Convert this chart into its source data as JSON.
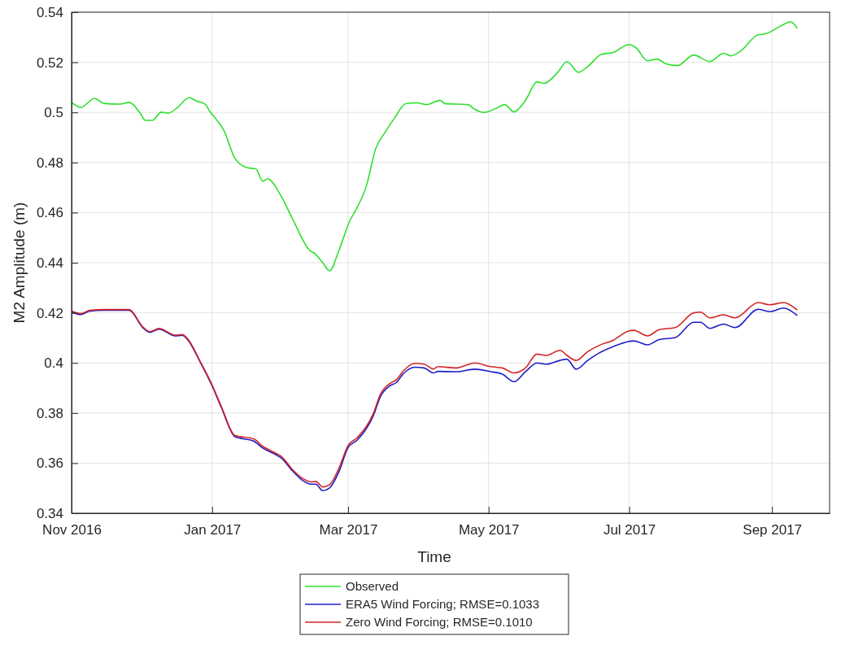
{
  "chart_data": {
    "type": "line",
    "xlabel": "Time",
    "ylabel": "M2 Amplitude (m)",
    "xlim": [
      "2016-11-01",
      "2017-09-26"
    ],
    "xticks": [
      {
        "value": "2016-11-01",
        "label": "Nov 2016"
      },
      {
        "value": "2017-01-01",
        "label": "Jan 2017"
      },
      {
        "value": "2017-03-01",
        "label": "Mar 2017"
      },
      {
        "value": "2017-05-01",
        "label": "May 2017"
      },
      {
        "value": "2017-07-01",
        "label": "Jul 2017"
      },
      {
        "value": "2017-09-01",
        "label": "Sep 2017"
      }
    ],
    "ylim": [
      0.34,
      0.54
    ],
    "yticks": [
      0.34,
      0.36,
      0.38,
      0.4,
      0.42,
      0.44,
      0.46,
      0.48,
      0.5,
      0.52,
      0.54
    ],
    "grid": true,
    "legend": "bottom",
    "line_style": "solid",
    "marker": "none",
    "series": [
      {
        "name": "Observed",
        "color": "#2ee02e",
        "x": [
          "2016-11-01",
          "2016-11-05",
          "2016-11-11",
          "2016-11-15",
          "2016-11-22",
          "2016-11-26",
          "2016-12-01",
          "2016-12-03",
          "2016-12-06",
          "2016-12-10",
          "2016-12-13",
          "2016-12-17",
          "2016-12-22",
          "2016-12-25",
          "2016-12-29",
          "2016-12-31",
          "2017-01-03",
          "2017-01-06",
          "2017-01-11",
          "2017-01-16",
          "2017-01-20",
          "2017-01-23",
          "2017-01-25",
          "2017-01-31",
          "2017-02-05",
          "2017-02-12",
          "2017-02-15",
          "2017-02-18",
          "2017-02-21",
          "2017-02-25",
          "2017-03-02",
          "2017-03-04",
          "2017-03-09",
          "2017-03-13",
          "2017-03-17",
          "2017-03-21",
          "2017-03-26",
          "2017-03-31",
          "2017-04-04",
          "2017-04-10",
          "2017-04-12",
          "2017-04-22",
          "2017-04-25",
          "2017-04-29",
          "2017-05-04",
          "2017-05-08",
          "2017-05-12",
          "2017-05-17",
          "2017-05-22",
          "2017-05-25",
          "2017-05-31",
          "2017-06-04",
          "2017-06-09",
          "2017-06-13",
          "2017-06-19",
          "2017-06-24",
          "2017-07-01",
          "2017-07-04",
          "2017-07-09",
          "2017-07-13",
          "2017-07-17",
          "2017-07-22",
          "2017-07-29",
          "2017-08-05",
          "2017-08-11",
          "2017-08-14",
          "2017-08-18",
          "2017-08-26",
          "2017-08-29",
          "2017-09-05",
          "2017-09-09",
          "2017-09-12"
        ],
        "values": [
          0.504,
          0.502,
          0.5056,
          0.5036,
          0.5033,
          0.504,
          0.4994,
          0.4968,
          0.4968,
          0.5001,
          0.4997,
          0.502,
          0.5059,
          0.5046,
          0.5033,
          0.5004,
          0.497,
          0.493,
          0.4815,
          0.478,
          0.4774,
          0.4725,
          0.4735,
          0.4665,
          0.4573,
          0.4453,
          0.4433,
          0.44,
          0.4368,
          0.4448,
          0.4572,
          0.4605,
          0.4708,
          0.4855,
          0.492,
          0.4975,
          0.5035,
          0.5038,
          0.5031,
          0.5048,
          0.5035,
          0.5031,
          0.5012,
          0.5,
          0.5015,
          0.5031,
          0.5002,
          0.5048,
          0.5122,
          0.5116,
          0.516,
          0.5203,
          0.516,
          0.5183,
          0.5232,
          0.5239,
          0.5271,
          0.5258,
          0.5206,
          0.5213,
          0.5194,
          0.5187,
          0.5229,
          0.5203,
          0.5236,
          0.5226,
          0.5242,
          0.531,
          0.5313,
          0.5346,
          0.5362,
          0.5336
        ]
      },
      {
        "name": "ERA5 Wind Forcing; RMSE=0.1033",
        "color": "#1c1cc8",
        "x": [
          "2016-11-01",
          "2016-11-05",
          "2016-11-09",
          "2016-11-15",
          "2016-11-26",
          "2016-12-02",
          "2016-12-05",
          "2016-12-09",
          "2016-12-16",
          "2016-12-19",
          "2016-12-21",
          "2016-12-27",
          "2017-01-01",
          "2017-01-05",
          "2017-01-11",
          "2017-01-19",
          "2017-01-23",
          "2017-01-29",
          "2017-01-31",
          "2017-02-05",
          "2017-02-09",
          "2017-02-13",
          "2017-02-15",
          "2017-02-18",
          "2017-02-21",
          "2017-02-25",
          "2017-03-01",
          "2017-03-05",
          "2017-03-12",
          "2017-03-15",
          "2017-03-19",
          "2017-03-22",
          "2017-03-25",
          "2017-03-30",
          "2017-04-03",
          "2017-04-07",
          "2017-04-09",
          "2017-04-17",
          "2017-04-25",
          "2017-05-02",
          "2017-05-07",
          "2017-05-12",
          "2017-05-17",
          "2017-05-22",
          "2017-05-26",
          "2017-06-01",
          "2017-06-04",
          "2017-06-08",
          "2017-06-13",
          "2017-06-18",
          "2017-06-24",
          "2017-07-01",
          "2017-07-03",
          "2017-07-09",
          "2017-07-14",
          "2017-07-21",
          "2017-07-29",
          "2017-08-01",
          "2017-08-05",
          "2017-08-11",
          "2017-08-16",
          "2017-08-26",
          "2017-08-31",
          "2017-09-06",
          "2017-09-12"
        ],
        "values": [
          0.4203,
          0.4193,
          0.4207,
          0.421,
          0.421,
          0.414,
          0.4122,
          0.4135,
          0.4108,
          0.411,
          0.4097,
          0.4,
          0.3908,
          0.3822,
          0.3705,
          0.3688,
          0.366,
          0.3632,
          0.362,
          0.3568,
          0.3533,
          0.3516,
          0.3516,
          0.349,
          0.3501,
          0.3565,
          0.3662,
          0.3692,
          0.379,
          0.3865,
          0.3908,
          0.3922,
          0.3957,
          0.3983,
          0.398,
          0.396,
          0.3966,
          0.3965,
          0.3975,
          0.3965,
          0.3955,
          0.3925,
          0.3965,
          0.4,
          0.3995,
          0.401,
          0.4015,
          0.3975,
          0.401,
          0.404,
          0.4065,
          0.4086,
          0.4088,
          0.4072,
          0.4093,
          0.4101,
          0.4162,
          0.4162,
          0.4138,
          0.4155,
          0.4141,
          0.4214,
          0.4205,
          0.4219,
          0.4189
        ]
      },
      {
        "name": "Zero Wind Forcing; RMSE=0.1010",
        "color": "#d42424",
        "x": [
          "2016-11-01",
          "2016-11-05",
          "2016-11-09",
          "2016-11-15",
          "2016-11-26",
          "2016-12-02",
          "2016-12-05",
          "2016-12-09",
          "2016-12-16",
          "2016-12-19",
          "2016-12-21",
          "2016-12-27",
          "2017-01-01",
          "2017-01-05",
          "2017-01-11",
          "2017-01-19",
          "2017-01-23",
          "2017-01-29",
          "2017-01-31",
          "2017-02-05",
          "2017-02-09",
          "2017-02-13",
          "2017-02-15",
          "2017-02-18",
          "2017-02-21",
          "2017-02-25",
          "2017-03-01",
          "2017-03-05",
          "2017-03-12",
          "2017-03-15",
          "2017-03-19",
          "2017-03-22",
          "2017-03-25",
          "2017-03-30",
          "2017-04-03",
          "2017-04-07",
          "2017-04-09",
          "2017-04-17",
          "2017-04-25",
          "2017-05-02",
          "2017-05-07",
          "2017-05-12",
          "2017-05-17",
          "2017-05-22",
          "2017-05-26",
          "2017-06-01",
          "2017-06-04",
          "2017-06-08",
          "2017-06-13",
          "2017-06-18",
          "2017-06-24",
          "2017-07-01",
          "2017-07-03",
          "2017-07-09",
          "2017-07-14",
          "2017-07-21",
          "2017-07-29",
          "2017-08-01",
          "2017-08-05",
          "2017-08-11",
          "2017-08-16",
          "2017-08-26",
          "2017-08-31",
          "2017-09-06",
          "2017-09-12"
        ],
        "values": [
          0.4207,
          0.4197,
          0.421,
          0.4213,
          0.4213,
          0.4143,
          0.4125,
          0.4138,
          0.4111,
          0.4113,
          0.41,
          0.4003,
          0.3912,
          0.3826,
          0.371,
          0.3697,
          0.3667,
          0.3638,
          0.3627,
          0.3573,
          0.3541,
          0.3525,
          0.3527,
          0.3505,
          0.3514,
          0.3579,
          0.367,
          0.3702,
          0.3799,
          0.3874,
          0.3917,
          0.3933,
          0.3968,
          0.3998,
          0.3995,
          0.3976,
          0.3985,
          0.398,
          0.4,
          0.3985,
          0.398,
          0.396,
          0.398,
          0.4035,
          0.403,
          0.405,
          0.403,
          0.401,
          0.4045,
          0.407,
          0.409,
          0.4128,
          0.413,
          0.4108,
          0.4133,
          0.4141,
          0.42,
          0.4203,
          0.418,
          0.4192,
          0.418,
          0.4241,
          0.4232,
          0.4241,
          0.4211
        ]
      }
    ]
  }
}
